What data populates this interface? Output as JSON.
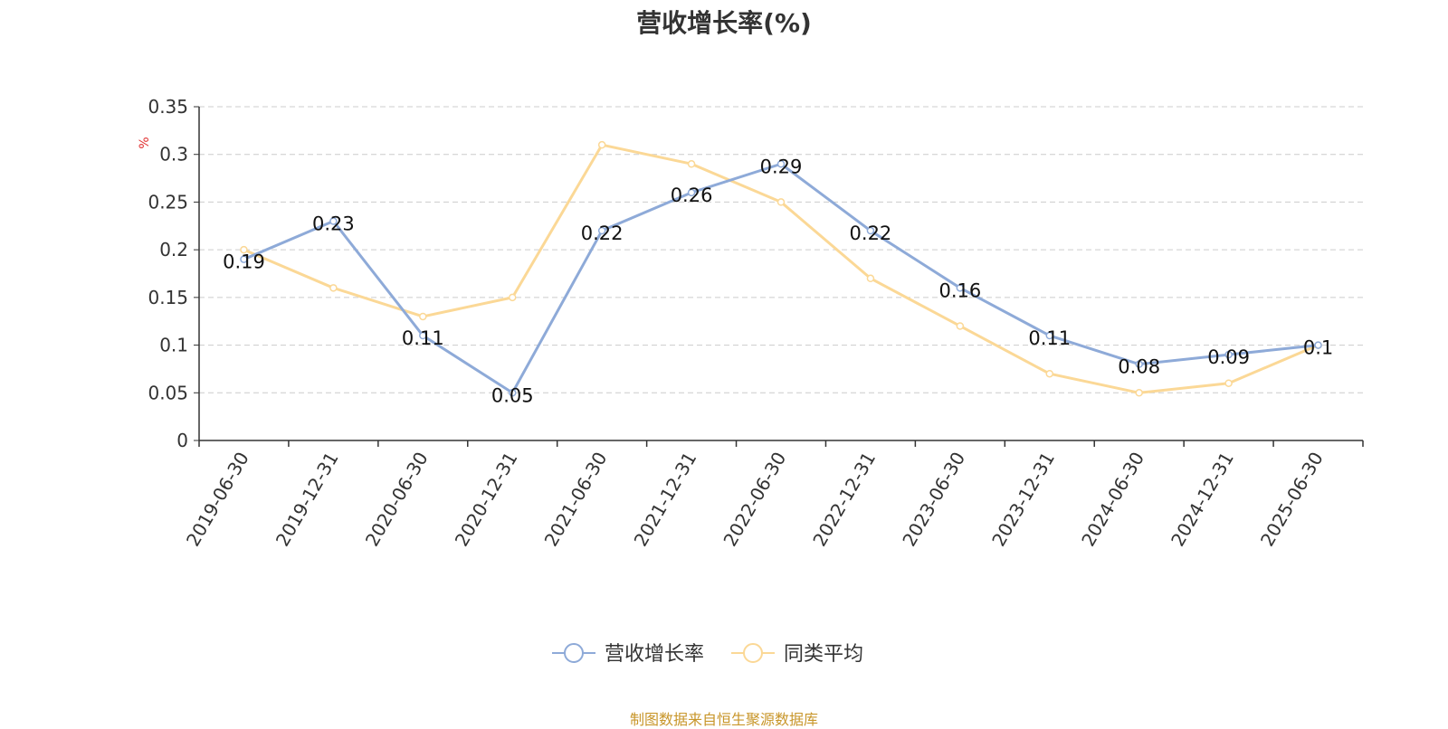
{
  "title": "营收增长率(%)",
  "footer": "制图数据来自恒生聚源数据库",
  "colors": {
    "series_growth": "#8eaad8",
    "series_peer": "#fbd896",
    "axis": "#333333",
    "grid": "#cccccc",
    "unit": "#e03030",
    "footer": "#c8962a"
  },
  "chart_data": {
    "type": "line",
    "title": "营收增长率(%)",
    "ylabel": "%",
    "xlabel": "",
    "ylim": [
      0,
      0.35
    ],
    "yticks": [
      "0",
      "0.05",
      "0.1",
      "0.15",
      "0.2",
      "0.25",
      "0.3",
      "0.35"
    ],
    "grid": true,
    "legend_position": "bottom-center",
    "categories": [
      "2019-06-30",
      "2019-12-31",
      "2020-06-30",
      "2020-12-31",
      "2021-06-30",
      "2021-12-31",
      "2022-06-30",
      "2022-12-31",
      "2023-06-30",
      "2023-12-31",
      "2024-06-30",
      "2024-12-31",
      "2025-06-30"
    ],
    "series": [
      {
        "name": "营收增长率",
        "values": [
          0.19,
          0.23,
          0.11,
          0.05,
          0.22,
          0.26,
          0.29,
          0.22,
          0.16,
          0.11,
          0.08,
          0.09,
          0.1
        ],
        "labels": [
          "0.19",
          "0.23",
          "0.11",
          "0.05",
          "0.22",
          "0.26",
          "0.29",
          "0.22",
          "0.16",
          "0.11",
          "0.08",
          "0.09",
          "0.1"
        ],
        "color": "#8eaad8"
      },
      {
        "name": "同类平均",
        "values": [
          0.2,
          0.16,
          0.13,
          0.15,
          0.31,
          0.29,
          0.25,
          0.17,
          0.12,
          0.07,
          0.05,
          0.06,
          0.1
        ],
        "color": "#fbd896"
      }
    ]
  }
}
